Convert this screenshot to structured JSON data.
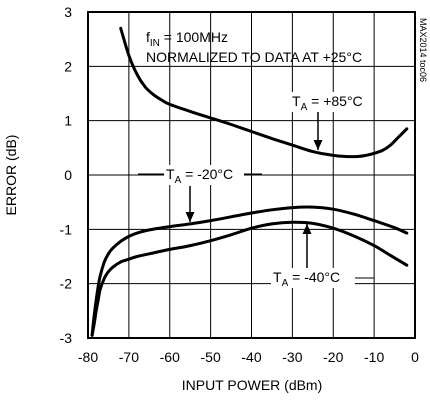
{
  "chart_data": {
    "type": "line",
    "xlabel": "INPUT POWER (dBm)",
    "ylabel": "ERROR (dB)",
    "xlim": [
      -80,
      0
    ],
    "ylim": [
      -3,
      3
    ],
    "x_ticks": [
      -80,
      -70,
      -60,
      -50,
      -40,
      -30,
      -20,
      -10,
      0
    ],
    "y_ticks": [
      3,
      2,
      1,
      0,
      -1,
      -2,
      -3
    ],
    "grid": true,
    "annotations": {
      "fin": {
        "main": "f",
        "sub": "IN",
        "rest": " = 100MHz"
      },
      "normalized": "NORMALIZED TO DATA AT +25°C",
      "ta85": {
        "main": "T",
        "sub": "A",
        "rest": " = +85°C"
      },
      "ta_m20": {
        "main": "T",
        "sub": "A",
        "rest": " = -20°C"
      },
      "ta_m40": {
        "main": "T",
        "sub": "A",
        "rest": " = -40°C"
      }
    },
    "side_label": "MAX2014 toc06",
    "series": [
      {
        "x": [
          -72,
          -70,
          -68,
          -66,
          -64,
          -62,
          -60,
          -55,
          -50,
          -45,
          -40,
          -35,
          -30,
          -25,
          -20,
          -17,
          -14,
          -12,
          -10,
          -8,
          -6,
          -4,
          -2
        ],
        "values": [
          2.7,
          2.2,
          1.85,
          1.62,
          1.48,
          1.38,
          1.3,
          1.17,
          1.05,
          0.93,
          0.8,
          0.67,
          0.55,
          0.43,
          0.36,
          0.34,
          0.34,
          0.36,
          0.4,
          0.45,
          0.55,
          0.7,
          0.85
        ]
      },
      {
        "x": [
          -79,
          -78.5,
          -78,
          -77.5,
          -77,
          -76,
          -75,
          -74,
          -72,
          -70,
          -68,
          -65,
          -60,
          -55,
          -50,
          -45,
          -40,
          -35,
          -30,
          -25,
          -20,
          -15,
          -10,
          -5,
          -2
        ],
        "values": [
          -2.95,
          -2.6,
          -2.3,
          -2.05,
          -1.85,
          -1.6,
          -1.45,
          -1.35,
          -1.22,
          -1.13,
          -1.07,
          -1.01,
          -0.95,
          -0.9,
          -0.84,
          -0.77,
          -0.7,
          -0.64,
          -0.6,
          -0.59,
          -0.63,
          -0.72,
          -0.84,
          -0.97,
          -1.07
        ]
      },
      {
        "x": [
          -79,
          -78.5,
          -78,
          -77.5,
          -77,
          -76,
          -75,
          -74,
          -72,
          -70,
          -68,
          -65,
          -60,
          -55,
          -50,
          -45,
          -40,
          -35,
          -30,
          -25,
          -20,
          -15,
          -10,
          -6,
          -2
        ],
        "values": [
          -2.95,
          -2.75,
          -2.5,
          -2.3,
          -2.1,
          -1.9,
          -1.78,
          -1.7,
          -1.6,
          -1.55,
          -1.5,
          -1.45,
          -1.37,
          -1.3,
          -1.21,
          -1.1,
          -0.98,
          -0.9,
          -0.87,
          -0.89,
          -0.98,
          -1.12,
          -1.3,
          -1.48,
          -1.66
        ]
      }
    ]
  }
}
